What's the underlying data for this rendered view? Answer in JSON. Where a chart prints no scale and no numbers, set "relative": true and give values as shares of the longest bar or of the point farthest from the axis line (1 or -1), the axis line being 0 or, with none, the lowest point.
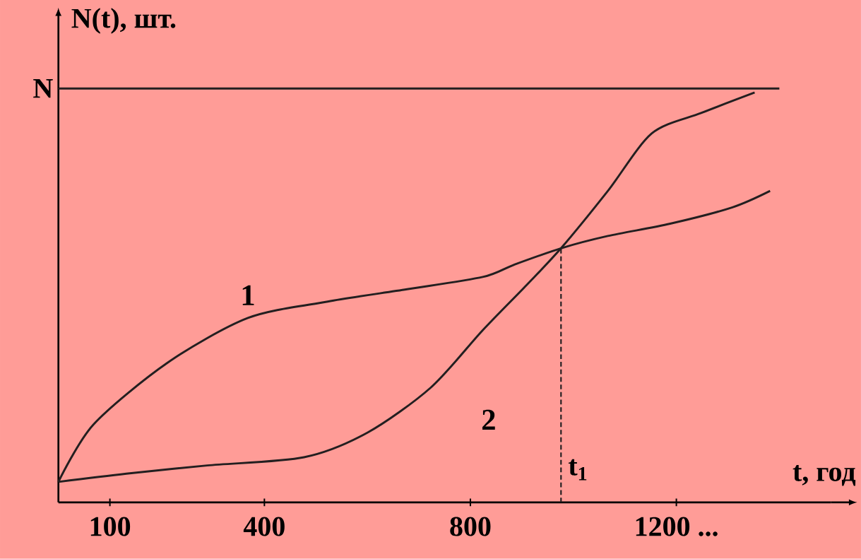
{
  "chart_data": {
    "type": "line",
    "relative": true,
    "xlabel": "t, год",
    "ylabel": "N(t), шт.",
    "xlim": [
      0,
      1500
    ],
    "xticks": [
      100,
      400,
      800,
      {
        "value": 1200,
        "label": "1200 ..."
      }
    ],
    "marker": "none",
    "line_style": "solid",
    "grid": false,
    "series": [
      {
        "name": "1",
        "color": "#231f20",
        "x": [
          0,
          68,
          211,
          368,
          523,
          677,
          824,
          885,
          976,
          1067,
          1188,
          1309,
          1382
        ],
        "values": [
          0.05,
          0.19,
          0.34,
          0.45,
          0.49,
          0.52,
          0.55,
          0.58,
          0.62,
          0.65,
          0.68,
          0.72,
          0.76
        ]
      },
      {
        "name": "2",
        "color": "#231f20",
        "x": [
          0,
          132,
          289,
          477,
          600,
          723,
          824,
          909,
          976,
          1067,
          1152,
          1248,
          1352
        ],
        "values": [
          0.05,
          0.07,
          0.09,
          0.11,
          0.17,
          0.28,
          0.42,
          0.53,
          0.62,
          0.76,
          0.9,
          0.95,
          1
        ]
      }
    ],
    "ref_lines": [
      {
        "axis": "y",
        "value": 1.01,
        "label": "N",
        "color": "#231f20",
        "line_style": "solid"
      },
      {
        "axis": "x",
        "value": 976,
        "label": "t$_{1}$",
        "color": "#231f20",
        "line_style": "dashed"
      }
    ]
  }
}
